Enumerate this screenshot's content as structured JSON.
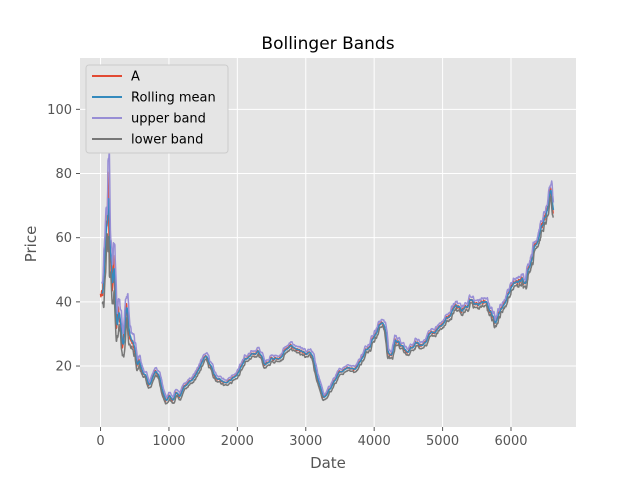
{
  "chart_data": {
    "type": "line",
    "title": "Bollinger Bands",
    "xlabel": "Date",
    "ylabel": "Price",
    "xlim": [
      -300,
      6950
    ],
    "ylim": [
      1,
      116
    ],
    "xticks": [
      0,
      1000,
      2000,
      3000,
      4000,
      5000,
      6000
    ],
    "yticks": [
      20,
      40,
      60,
      80,
      100
    ],
    "grid": true,
    "legend_position": "top-left",
    "anchor_points": [
      [
        0,
        42
      ],
      [
        30,
        41
      ],
      [
        60,
        52
      ],
      [
        80,
        66
      ],
      [
        95,
        60
      ],
      [
        110,
        78
      ],
      [
        130,
        55
      ],
      [
        150,
        50
      ],
      [
        170,
        45
      ],
      [
        190,
        53
      ],
      [
        210,
        40
      ],
      [
        230,
        30
      ],
      [
        260,
        38
      ],
      [
        290,
        33
      ],
      [
        320,
        28
      ],
      [
        350,
        34
      ],
      [
        380,
        40
      ],
      [
        410,
        30
      ],
      [
        440,
        28
      ],
      [
        470,
        26
      ],
      [
        500,
        24
      ],
      [
        530,
        20
      ],
      [
        560,
        22
      ],
      [
        600,
        18
      ],
      [
        650,
        17
      ],
      [
        700,
        14
      ],
      [
        750,
        16
      ],
      [
        800,
        19
      ],
      [
        850,
        17
      ],
      [
        900,
        12
      ],
      [
        950,
        9
      ],
      [
        1000,
        11
      ],
      [
        1050,
        9
      ],
      [
        1100,
        12
      ],
      [
        1150,
        10
      ],
      [
        1200,
        13
      ],
      [
        1300,
        15
      ],
      [
        1400,
        18
      ],
      [
        1500,
        22
      ],
      [
        1550,
        23
      ],
      [
        1600,
        20
      ],
      [
        1650,
        17
      ],
      [
        1700,
        16
      ],
      [
        1800,
        15
      ],
      [
        1900,
        16
      ],
      [
        2000,
        18
      ],
      [
        2100,
        22
      ],
      [
        2200,
        23
      ],
      [
        2300,
        25
      ],
      [
        2400,
        20
      ],
      [
        2500,
        23
      ],
      [
        2600,
        22
      ],
      [
        2700,
        25
      ],
      [
        2800,
        26
      ],
      [
        2900,
        25
      ],
      [
        3000,
        23
      ],
      [
        3050,
        24
      ],
      [
        3100,
        22
      ],
      [
        3150,
        17
      ],
      [
        3200,
        14
      ],
      [
        3250,
        10
      ],
      [
        3300,
        11
      ],
      [
        3400,
        15
      ],
      [
        3500,
        18
      ],
      [
        3600,
        20
      ],
      [
        3700,
        19
      ],
      [
        3800,
        22
      ],
      [
        3900,
        26
      ],
      [
        4000,
        30
      ],
      [
        4100,
        34
      ],
      [
        4150,
        32
      ],
      [
        4200,
        24
      ],
      [
        4250,
        23
      ],
      [
        4300,
        28
      ],
      [
        4400,
        27
      ],
      [
        4500,
        24
      ],
      [
        4600,
        27
      ],
      [
        4700,
        26
      ],
      [
        4800,
        30
      ],
      [
        4900,
        31
      ],
      [
        5000,
        33
      ],
      [
        5100,
        36
      ],
      [
        5200,
        39
      ],
      [
        5300,
        38
      ],
      [
        5400,
        40
      ],
      [
        5500,
        39
      ],
      [
        5600,
        40
      ],
      [
        5700,
        37
      ],
      [
        5750,
        34
      ],
      [
        5800,
        36
      ],
      [
        5900,
        40
      ],
      [
        6000,
        45
      ],
      [
        6100,
        46
      ],
      [
        6200,
        47
      ],
      [
        6300,
        55
      ],
      [
        6400,
        62
      ],
      [
        6500,
        66
      ],
      [
        6550,
        70
      ],
      [
        6580,
        74
      ],
      [
        6600,
        70
      ],
      [
        6620,
        68
      ]
    ],
    "series": [
      {
        "name": "A",
        "color": "#E24A33"
      },
      {
        "name": "Rolling mean",
        "color": "#348ABD"
      },
      {
        "name": "upper band",
        "color": "#988ED5"
      },
      {
        "name": "lower band",
        "color": "#777777"
      }
    ]
  }
}
